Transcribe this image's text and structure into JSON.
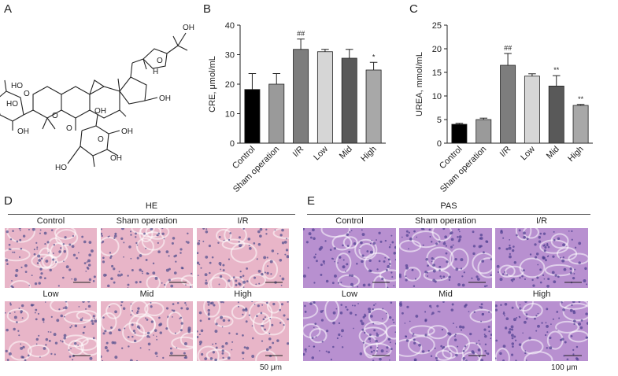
{
  "panel_labels": [
    "A",
    "B",
    "C",
    "D",
    "E"
  ],
  "structure": {
    "labels": [
      "OH",
      "H",
      "OH",
      "HO",
      "O",
      "O",
      "HO",
      "OH",
      "O",
      "O",
      "OH",
      "OH",
      "OH",
      "HO",
      "O"
    ]
  },
  "chart_data": [
    {
      "type": "bar",
      "title": "",
      "ylabel": "CRE, μmol/mL",
      "xlabel": "",
      "ylim": [
        0,
        40
      ],
      "yticks": [
        0,
        10,
        20,
        30,
        40
      ],
      "categories": [
        "Control",
        "Sham operation",
        "I/R",
        "Low",
        "Mid",
        "High"
      ],
      "values": [
        18.2,
        20.0,
        31.8,
        31.0,
        28.8,
        24.8
      ],
      "errors": [
        5.4,
        3.6,
        3.5,
        0.8,
        3.0,
        2.6
      ],
      "annotations": [
        "",
        "",
        "##",
        "",
        "",
        "*"
      ],
      "colors": [
        "#000000",
        "#9a9a9a",
        "#7d7d7d",
        "#d6d6d6",
        "#595959",
        "#a8a8a8"
      ],
      "grid": false
    },
    {
      "type": "bar",
      "title": "",
      "ylabel": "UREA, mmol/mL",
      "xlabel": "",
      "ylim": [
        0,
        25
      ],
      "yticks": [
        0,
        5,
        10,
        15,
        20,
        25
      ],
      "categories": [
        "Control",
        "Sham operation",
        "I/R",
        "Low",
        "Mid",
        "High"
      ],
      "values": [
        4.0,
        5.0,
        16.5,
        14.2,
        12.1,
        8.0
      ],
      "errors": [
        0.2,
        0.3,
        2.5,
        0.5,
        2.2,
        0.2
      ],
      "annotations": [
        "",
        "",
        "##",
        "",
        "**",
        "**"
      ],
      "colors": [
        "#000000",
        "#9a9a9a",
        "#7d7d7d",
        "#d6d6d6",
        "#595959",
        "#a8a8a8"
      ],
      "grid": false
    }
  ],
  "micrographs": {
    "he": {
      "title": "HE",
      "labels": [
        "Control",
        "Sham operation",
        "I/R",
        "Low",
        "Mid",
        "High"
      ],
      "scale_bar": "50 μm",
      "tissue_color": "#e8b5c8",
      "nuclei_color": "#4a4a8a"
    },
    "pas": {
      "title": "PAS",
      "labels": [
        "Control",
        "Sham operation",
        "I/R",
        "Low",
        "Mid",
        "High"
      ],
      "scale_bar": "100 μm",
      "tissue_color": "#b890d0",
      "nuclei_color": "#4c3d8f"
    }
  }
}
